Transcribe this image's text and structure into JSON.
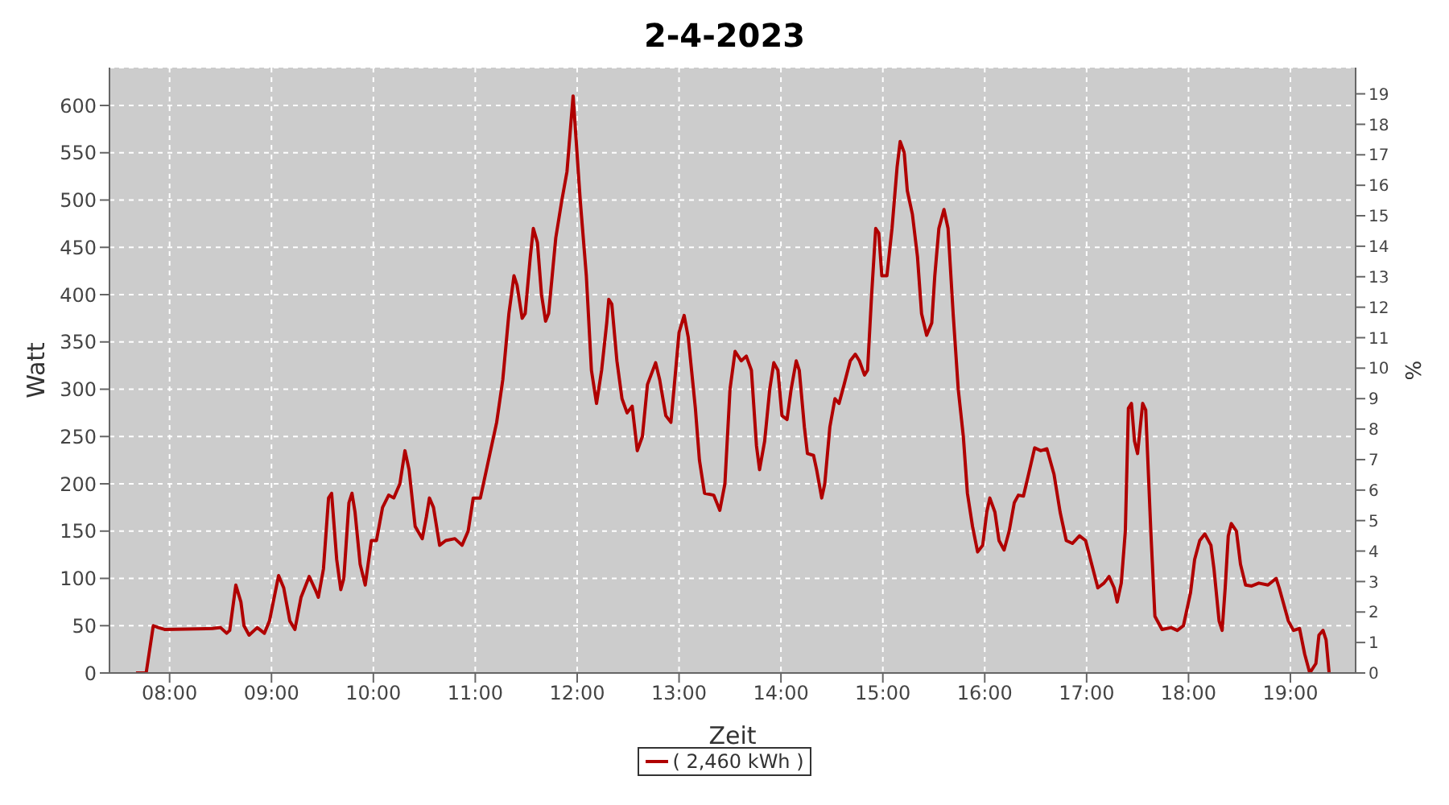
{
  "chart_data": {
    "type": "line",
    "title": "2-4-2023",
    "xlabel": "Zeit",
    "ylabel": "Watt",
    "y2label": "%",
    "x": [
      7.67,
      7.77,
      7.84,
      7.89,
      7.95,
      8.42,
      8.5,
      8.56,
      8.59,
      8.65,
      8.7,
      8.73,
      8.78,
      8.86,
      8.93,
      8.98,
      9.07,
      9.12,
      9.18,
      9.23,
      9.29,
      9.37,
      9.43,
      9.46,
      9.51,
      9.56,
      9.59,
      9.64,
      9.68,
      9.71,
      9.76,
      9.79,
      9.82,
      9.87,
      9.92,
      9.98,
      10.03,
      10.09,
      10.15,
      10.2,
      10.26,
      10.31,
      10.35,
      10.41,
      10.48,
      10.52,
      10.55,
      10.59,
      10.65,
      10.71,
      10.8,
      10.87,
      10.93,
      10.98,
      11.05,
      11.13,
      11.21,
      11.27,
      11.33,
      11.38,
      11.41,
      11.46,
      11.49,
      11.54,
      11.57,
      11.61,
      11.65,
      11.69,
      11.72,
      11.79,
      11.85,
      11.9,
      11.96,
      11.97,
      12.03,
      12.09,
      12.14,
      12.19,
      12.24,
      12.29,
      12.31,
      12.34,
      12.39,
      12.44,
      12.49,
      12.54,
      12.59,
      12.64,
      12.69,
      12.77,
      12.81,
      12.87,
      12.92,
      12.95,
      13.0,
      13.05,
      13.09,
      13.16,
      13.2,
      13.25,
      13.34,
      13.4,
      13.45,
      13.5,
      13.55,
      13.61,
      13.66,
      13.71,
      13.76,
      13.79,
      13.84,
      13.89,
      13.93,
      13.97,
      14.01,
      14.06,
      14.1,
      14.15,
      14.18,
      14.23,
      14.26,
      14.32,
      14.35,
      14.4,
      14.43,
      14.48,
      14.53,
      14.57,
      14.62,
      14.68,
      14.73,
      14.77,
      14.82,
      14.85,
      14.89,
      14.93,
      14.96,
      14.99,
      15.04,
      15.09,
      15.14,
      15.17,
      15.21,
      15.24,
      15.29,
      15.34,
      15.38,
      15.43,
      15.48,
      15.51,
      15.55,
      15.6,
      15.64,
      15.69,
      15.74,
      15.79,
      15.83,
      15.88,
      15.93,
      15.98,
      16.02,
      16.05,
      16.1,
      16.14,
      16.19,
      16.24,
      16.29,
      16.33,
      16.38,
      16.43,
      16.49,
      16.55,
      16.61,
      16.68,
      16.74,
      16.8,
      16.86,
      16.93,
      16.99,
      17.05,
      17.11,
      17.17,
      17.22,
      17.27,
      17.3,
      17.34,
      17.38,
      17.41,
      17.44,
      17.47,
      17.5,
      17.55,
      17.58,
      17.63,
      17.67,
      17.74,
      17.83,
      17.89,
      17.95,
      18.02,
      18.06,
      18.11,
      18.16,
      18.22,
      18.25,
      18.3,
      18.33,
      18.36,
      18.39,
      18.42,
      18.47,
      18.51,
      18.56,
      18.62,
      18.69,
      18.78,
      18.86,
      18.89,
      18.98,
      19.03,
      19.09,
      19.14,
      19.19,
      19.25,
      19.28,
      19.32,
      19.35,
      19.38
    ],
    "series": [
      {
        "name": "( 2,460 kWh )",
        "color": "#b00000",
        "values": [
          0,
          0,
          50,
          48,
          46,
          47,
          48,
          42,
          45,
          93,
          75,
          50,
          40,
          48,
          42,
          55,
          103,
          90,
          55,
          46,
          80,
          102,
          88,
          80,
          110,
          185,
          190,
          120,
          88,
          100,
          180,
          190,
          170,
          115,
          93,
          140,
          140,
          175,
          188,
          185,
          200,
          235,
          215,
          155,
          142,
          165,
          185,
          175,
          135,
          140,
          142,
          135,
          150,
          185,
          185,
          225,
          265,
          310,
          380,
          420,
          410,
          375,
          380,
          440,
          470,
          455,
          400,
          372,
          380,
          460,
          500,
          530,
          610,
          595,
          500,
          420,
          320,
          285,
          320,
          370,
          395,
          390,
          330,
          290,
          275,
          282,
          235,
          250,
          305,
          328,
          310,
          272,
          265,
          300,
          360,
          378,
          355,
          280,
          225,
          190,
          188,
          172,
          200,
          300,
          340,
          330,
          335,
          320,
          240,
          215,
          245,
          300,
          328,
          320,
          272,
          268,
          300,
          330,
          320,
          260,
          232,
          230,
          215,
          185,
          200,
          260,
          290,
          285,
          305,
          330,
          337,
          330,
          315,
          320,
          400,
          470,
          465,
          420,
          420,
          470,
          535,
          562,
          550,
          510,
          485,
          440,
          380,
          357,
          370,
          420,
          470,
          490,
          470,
          380,
          300,
          250,
          190,
          155,
          128,
          135,
          170,
          185,
          170,
          140,
          130,
          150,
          180,
          188,
          187,
          210,
          238,
          235,
          237,
          210,
          170,
          140,
          137,
          145,
          140,
          115,
          90,
          95,
          102,
          90,
          75,
          95,
          150,
          280,
          285,
          245,
          232,
          285,
          278,
          150,
          60,
          46,
          48,
          45,
          50,
          85,
          120,
          140,
          147,
          135,
          110,
          55,
          45,
          90,
          145,
          158,
          150,
          115,
          93,
          92,
          95,
          93,
          100,
          90,
          55,
          45,
          47,
          20,
          0,
          10,
          40,
          45,
          35,
          0
        ]
      }
    ],
    "xlim": [
      7.41,
      19.64
    ],
    "xticks": [
      {
        "value": 8,
        "label": "08:00"
      },
      {
        "value": 9,
        "label": "09:00"
      },
      {
        "value": 10,
        "label": "10:00"
      },
      {
        "value": 11,
        "label": "11:00"
      },
      {
        "value": 12,
        "label": "12:00"
      },
      {
        "value": 13,
        "label": "13:00"
      },
      {
        "value": 14,
        "label": "14:00"
      },
      {
        "value": 15,
        "label": "15:00"
      },
      {
        "value": 16,
        "label": "16:00"
      },
      {
        "value": 17,
        "label": "17:00"
      },
      {
        "value": 18,
        "label": "18:00"
      },
      {
        "value": 19,
        "label": "19:00"
      }
    ],
    "ylim": [
      0,
      640
    ],
    "yticks": [
      0,
      50,
      100,
      150,
      200,
      250,
      300,
      350,
      400,
      450,
      500,
      550,
      600
    ],
    "y2lim": [
      0,
      19.86
    ],
    "y2ticks": [
      0,
      1,
      2,
      3,
      4,
      5,
      6,
      7,
      8,
      9,
      10,
      11,
      12,
      13,
      14,
      15,
      16,
      17,
      18,
      19
    ],
    "grid": true,
    "legend": "bottom",
    "marker": "none",
    "line_style": "solid"
  }
}
